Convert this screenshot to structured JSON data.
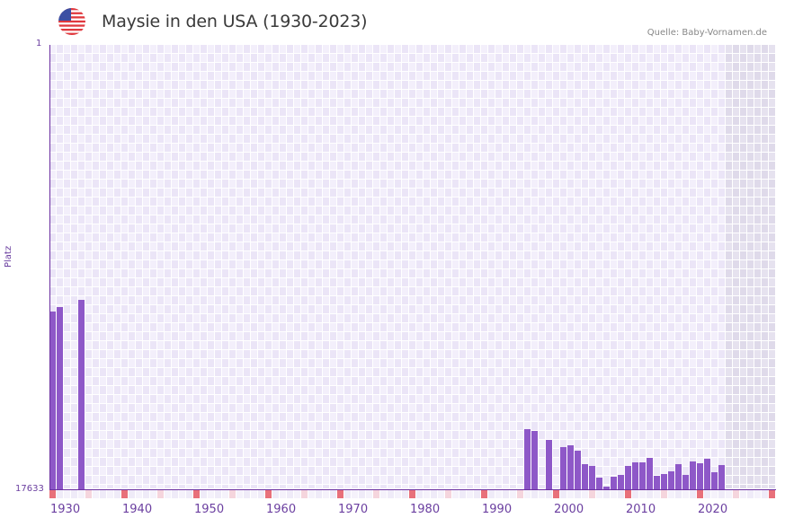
{
  "header": {
    "flag_icon": "us-flag-icon",
    "title": "Maysie in den USA (1930-2023)",
    "source": "Quelle: Baby-Vornamen.de"
  },
  "axes": {
    "y_top_label": "1",
    "y_bottom_label": "17633",
    "y_title": "Platz",
    "x_labels": [
      "1930",
      "1940",
      "1950",
      "1960",
      "1970",
      "1980",
      "1990",
      "2000",
      "2010",
      "2020"
    ]
  },
  "colors": {
    "bar": "#8e58c8",
    "axis": "#6b2fa0",
    "decade_marker": "#e8707a",
    "half_decade_marker": "#f5d5dd",
    "grid_light": "#f3effb",
    "grid_dark": "#ebe5f7",
    "future_shade": "#e3dfee"
  },
  "chart_data": {
    "type": "bar",
    "title": "Maysie in den USA (1930-2023)",
    "xlabel": "",
    "ylabel": "Platz",
    "ylim": [
      1,
      17633
    ],
    "y_inverted": true,
    "x_range": [
      1930,
      2030
    ],
    "categories": [
      1930,
      1931,
      1934,
      1996,
      1997,
      1999,
      2001,
      2002,
      2003,
      2004,
      2005,
      2006,
      2007,
      2008,
      2009,
      2010,
      2011,
      2012,
      2013,
      2014,
      2015,
      2016,
      2017,
      2018,
      2019,
      2020,
      2021,
      2022,
      2023
    ],
    "values": [
      10595,
      10417,
      10133,
      15252,
      15323,
      15678,
      15963,
      15892,
      16105,
      16639,
      16710,
      17172,
      17527,
      17136,
      17065,
      16710,
      16568,
      16568,
      16390,
      17101,
      17030,
      16923,
      16639,
      17065,
      16532,
      16603,
      16425,
      16959,
      16674
    ],
    "x_tick_labels": [
      "1930",
      "1940",
      "1950",
      "1960",
      "1970",
      "1980",
      "1990",
      "2000",
      "2010",
      "2020"
    ],
    "shaded_future_from": 2024,
    "grid": true,
    "legend": null
  }
}
